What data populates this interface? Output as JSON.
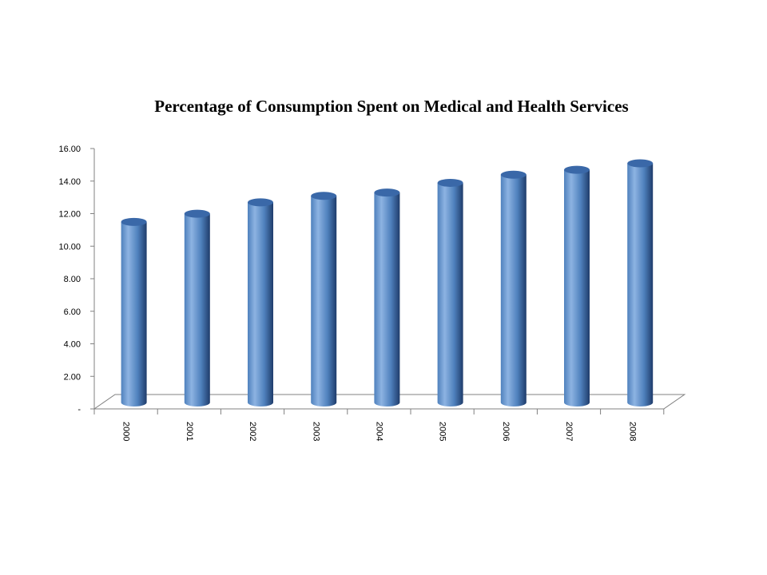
{
  "chart_data": {
    "type": "bar",
    "title": "Percentage of Consumption Spent on Medical and Health Services",
    "xlabel": "",
    "ylabel": "",
    "categories": [
      "2000",
      "2001",
      "2002",
      "2003",
      "2004",
      "2005",
      "2006",
      "2007",
      "2008"
    ],
    "values": [
      11.1,
      11.6,
      12.3,
      12.7,
      12.9,
      13.5,
      14.0,
      14.3,
      14.7
    ],
    "ylim": [
      0,
      16
    ],
    "yticks": [
      0,
      2,
      4,
      6,
      8,
      10,
      12,
      14,
      16
    ],
    "ytick_labels": [
      "-",
      "2.00",
      "4.00",
      "6.00",
      "8.00",
      "10.00",
      "12.00",
      "14.00",
      "16.00"
    ],
    "style": "3d-cylinder",
    "legend": "none",
    "grid": false,
    "colors": {
      "bar_light": "#8db3e2",
      "bar_mid": "#4f81bd",
      "bar_dark": "#1f3c6b",
      "bar_top": "#3a68a8",
      "axis": "#808080"
    }
  }
}
